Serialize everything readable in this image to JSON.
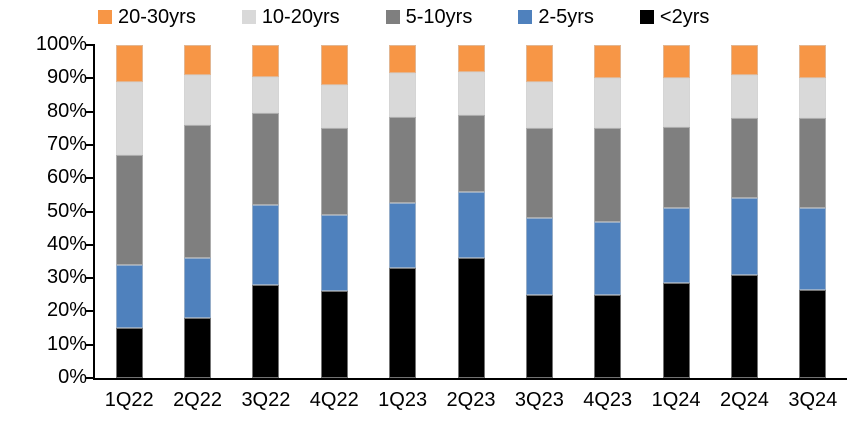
{
  "chart_data": {
    "type": "bar",
    "stacked": true,
    "percent_stacked": true,
    "title": "",
    "xlabel": "",
    "ylabel": "",
    "grid": false,
    "categories": [
      "1Q22",
      "2Q22",
      "3Q22",
      "4Q22",
      "1Q23",
      "2Q23",
      "3Q23",
      "4Q23",
      "1Q24",
      "2Q24",
      "3Q24"
    ],
    "series": [
      {
        "name": "<2yrs",
        "color": "#000000",
        "values": [
          15,
          18,
          28,
          26,
          33,
          36,
          25,
          25,
          28.5,
          31,
          26.5
        ]
      },
      {
        "name": "2-5yrs",
        "color": "#4F81BD",
        "values": [
          19,
          18,
          24,
          23,
          19.5,
          20,
          23,
          22,
          22.5,
          23,
          24.5
        ]
      },
      {
        "name": "5-10yrs",
        "color": "#7F7F7F",
        "values": [
          33,
          40,
          27.5,
          26,
          26,
          23,
          27,
          28,
          24.5,
          24,
          27
        ]
      },
      {
        "name": "10-20yrs",
        "color": "#D9D9D9",
        "values": [
          22,
          15,
          11,
          13,
          13,
          13,
          14,
          15,
          14.5,
          13,
          12
        ]
      },
      {
        "name": "20-30yrs",
        "color": "#F79646",
        "values": [
          11,
          9,
          9.5,
          12,
          8.5,
          8,
          11,
          10,
          10,
          9,
          10
        ]
      }
    ],
    "legend": {
      "position": "top",
      "order": [
        "20-30yrs",
        "10-20yrs",
        "5-10yrs",
        "2-5yrs",
        "<2yrs"
      ]
    },
    "y_axis": {
      "min": 0,
      "max": 100,
      "ticks": [
        "0%",
        "10%",
        "20%",
        "30%",
        "40%",
        "50%",
        "60%",
        "70%",
        "80%",
        "90%",
        "100%"
      ]
    }
  }
}
